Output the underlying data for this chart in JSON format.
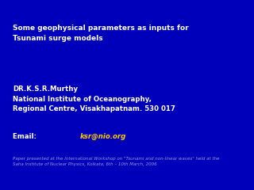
{
  "background_color": "#0000bb",
  "title_line1": "Some geophysical parameters as inputs for",
  "title_line2": "Tsunami surge models",
  "author": "DR.K.S.R.Murthy",
  "institute1": "National Institute of Oceanography,",
  "institute2": "Regional Centre, Visakhapatnam. 530 017",
  "email_label": "Email: ",
  "email_link": "ksr@nio.org",
  "footer": "Paper presented at the International Workshop on \"Tsunami and non-linear waves\" held at the\nSaha Institute of Nuclear Physics, Kolkata, 6th – 10th March, 2006",
  "title_color": "#ffffff",
  "body_color": "#ffffff",
  "email_color": "#ffcc00",
  "footer_color": "#9999dd",
  "title_fontsize": 6.5,
  "body_fontsize": 6.2,
  "footer_fontsize": 4.0
}
